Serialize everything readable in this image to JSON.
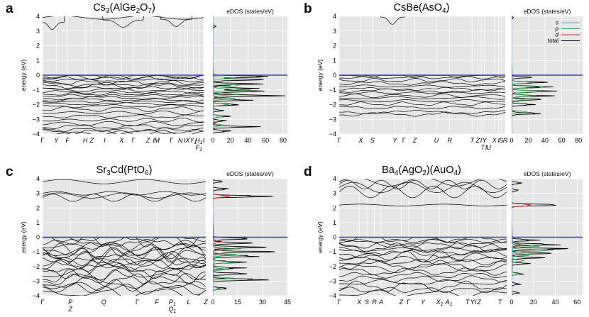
{
  "chart_data": [
    {
      "letter": "a",
      "type": "line",
      "title": "Cs3(AlGe2O7)",
      "title_parts": [
        {
          "t": "Cs"
        },
        {
          "t": "3",
          "sub": true
        },
        {
          "t": "(AlGe"
        },
        {
          "t": "2",
          "sub": true
        },
        {
          "t": "O"
        },
        {
          "t": "7",
          "sub": true
        },
        {
          "t": ")"
        }
      ],
      "ylabel": "energy (eV)",
      "ylim": [
        -4,
        4
      ],
      "yticks": [
        -4,
        -3,
        -2,
        -1,
        0,
        1,
        2,
        3,
        4
      ],
      "kpoints": [
        {
          "label": "Γ",
          "pos": 0.0
        },
        {
          "label": "Y",
          "pos": 0.085
        },
        {
          "label": "F",
          "pos": 0.155
        },
        {
          "label": "H",
          "pos": 0.265
        },
        {
          "label": "Z",
          "pos": 0.305
        },
        {
          "label": "I",
          "pos": 0.385
        },
        {
          "label": "X",
          "pos": 0.49
        },
        {
          "label": "Γ",
          "pos": 0.565
        },
        {
          "label": "Z",
          "pos": 0.655
        },
        {
          "label": "I",
          "pos": 0.69
        },
        {
          "label": "M",
          "pos": 0.71
        },
        {
          "label": "Γ",
          "pos": 0.8
        },
        {
          "label": "N",
          "pos": 0.855
        },
        {
          "label": "I",
          "pos": 0.88
        },
        {
          "label": "X",
          "pos": 0.9
        },
        {
          "label": "Y1",
          "pos": 0.935
        },
        {
          "label": "H1",
          "pos": 0.97
        },
        {
          "label": "I",
          "pos": 1.0
        }
      ],
      "kpoints_lower": [
        {
          "label": "F1",
          "pos": 0.97
        }
      ],
      "cond_bands": [
        {
          "type": "wave",
          "base": 3.92,
          "amp": 0.12,
          "freq": 2.0
        },
        {
          "type": "bump",
          "center": 0.06,
          "width": 0.03,
          "level": 3.6
        },
        {
          "type": "bump",
          "center": 0.5,
          "width": 0.05,
          "level": 3.75
        },
        {
          "type": "bump",
          "center": 0.83,
          "width": 0.04,
          "level": 3.8
        }
      ],
      "valence_bands": [
        -0.05,
        -0.12,
        -0.22,
        -0.35,
        -0.5,
        -0.62,
        -0.75,
        -0.88,
        -1.0,
        -1.15,
        -1.28,
        -1.4,
        -1.55,
        -1.68,
        -1.8,
        -1.95,
        -2.1,
        -2.3,
        -2.55,
        -2.8,
        -3.05,
        -3.3,
        -3.5,
        -3.7,
        -3.85,
        -3.95
      ],
      "band_amp": 0.1,
      "dos": {
        "xlabel": "eDOS (states/eV)",
        "xlim": [
          0,
          85
        ],
        "xticks": [
          0,
          20,
          40,
          60,
          80
        ],
        "total_peaks": [
          {
            "e": -0.1,
            "v": 72
          },
          {
            "e": -0.3,
            "v": 55
          },
          {
            "e": -0.6,
            "v": 48
          },
          {
            "e": -0.9,
            "v": 40
          },
          {
            "e": -1.1,
            "v": 58
          },
          {
            "e": -1.4,
            "v": 62
          },
          {
            "e": -1.7,
            "v": 36
          },
          {
            "e": -2.0,
            "v": 25
          },
          {
            "e": -2.4,
            "v": 12
          },
          {
            "e": -2.8,
            "v": 18
          },
          {
            "e": -3.1,
            "v": 15
          },
          {
            "e": -3.5,
            "v": 42
          },
          {
            "e": -3.8,
            "v": 20
          }
        ],
        "p_peaks": [
          {
            "e": -0.2,
            "v": 20
          },
          {
            "e": -0.7,
            "v": 30
          },
          {
            "e": -1.0,
            "v": 38
          },
          {
            "e": -1.3,
            "v": 32
          },
          {
            "e": -1.6,
            "v": 22
          },
          {
            "e": -2.0,
            "v": 14
          },
          {
            "e": -2.8,
            "v": 10
          },
          {
            "e": -3.4,
            "v": 12
          }
        ],
        "d_peaks": [
          {
            "e": -1.5,
            "v": 4
          },
          {
            "e": -3.2,
            "v": 3
          }
        ],
        "cond_peaks": [
          {
            "e": 3.3,
            "v": 3
          }
        ]
      }
    },
    {
      "letter": "b",
      "type": "line",
      "title": "CsBe(AsO4)",
      "title_parts": [
        {
          "t": "CsBe(AsO"
        },
        {
          "t": "4",
          "sub": true
        },
        {
          "t": ")"
        }
      ],
      "ylabel": "energy (eV)",
      "ylim": [
        -4,
        4
      ],
      "yticks": [
        -4,
        -3,
        -2,
        -1,
        0,
        1,
        2,
        3,
        4
      ],
      "kpoints": [
        {
          "label": "Γ",
          "pos": 0.0
        },
        {
          "label": "X",
          "pos": 0.13
        },
        {
          "label": "S",
          "pos": 0.2
        },
        {
          "label": "Y",
          "pos": 0.335
        },
        {
          "label": "Γ",
          "pos": 0.39
        },
        {
          "label": "Z",
          "pos": 0.455
        },
        {
          "label": "U",
          "pos": 0.585
        },
        {
          "label": "R",
          "pos": 0.665
        },
        {
          "label": "T",
          "pos": 0.8
        },
        {
          "label": "Z",
          "pos": 0.835
        },
        {
          "label": "I",
          "pos": 0.855
        },
        {
          "label": "Y",
          "pos": 0.875
        },
        {
          "label": "X",
          "pos": 0.935
        },
        {
          "label": "I",
          "pos": 0.96
        },
        {
          "label": "S",
          "pos": 0.975
        },
        {
          "label": "R",
          "pos": 1.0
        }
      ],
      "kpoints_lower": [
        {
          "label": "T",
          "pos": 0.865
        },
        {
          "label": "I",
          "pos": 0.885
        },
        {
          "label": "U",
          "pos": 0.9
        }
      ],
      "cond_bands": [
        {
          "type": "bump",
          "center": 0.32,
          "width": 0.03,
          "level": 3.95
        }
      ],
      "valence_bands": [
        -0.05,
        -0.15,
        -0.35,
        -0.55,
        -0.75,
        -0.95,
        -1.05,
        -1.2,
        -1.4,
        -1.55,
        -1.75,
        -1.95,
        -2.2,
        -2.5,
        -2.65
      ],
      "band_amp": 0.08,
      "dos": {
        "xlabel": "eDOS (states/eV)",
        "xlim": [
          0,
          85
        ],
        "xticks": [
          0,
          20,
          40,
          60,
          80
        ],
        "total_peaks": [
          {
            "e": -0.15,
            "v": 20
          },
          {
            "e": -0.5,
            "v": 38
          },
          {
            "e": -0.8,
            "v": 45
          },
          {
            "e": -1.1,
            "v": 50
          },
          {
            "e": -1.4,
            "v": 40
          },
          {
            "e": -1.65,
            "v": 38
          },
          {
            "e": -2.0,
            "v": 22
          },
          {
            "e": -2.6,
            "v": 30
          }
        ],
        "p_peaks": [
          {
            "e": -0.5,
            "v": 24
          },
          {
            "e": -0.8,
            "v": 30
          },
          {
            "e": -1.1,
            "v": 34
          },
          {
            "e": -1.4,
            "v": 28
          },
          {
            "e": -1.7,
            "v": 20
          },
          {
            "e": -2.5,
            "v": 16
          }
        ],
        "d_peaks": [
          {
            "e": -1.2,
            "v": 3
          }
        ],
        "cond_peaks": [
          {
            "e": 3.9,
            "v": 2
          }
        ]
      },
      "legend": [
        {
          "label": "s",
          "color": "#5aa3d6"
        },
        {
          "label": "p",
          "color": "#2fa84f"
        },
        {
          "label": "d",
          "color": "#d62728"
        },
        {
          "label": "total",
          "color": "#000000"
        }
      ]
    },
    {
      "letter": "c",
      "type": "line",
      "title": "Sr3Cd(PtO6)",
      "title_parts": [
        {
          "t": "Sr"
        },
        {
          "t": "3",
          "sub": true
        },
        {
          "t": "Cd(PtO"
        },
        {
          "t": "6",
          "sub": true
        },
        {
          "t": ")"
        }
      ],
      "ylabel": "energy (eV)",
      "ylim": [
        -4,
        4
      ],
      "yticks": [
        -4,
        -3,
        -2,
        -1,
        0,
        1,
        2,
        3,
        4
      ],
      "kpoints": [
        {
          "label": "Γ",
          "pos": 0.0
        },
        {
          "label": "P",
          "pos": 0.17
        },
        {
          "label": "Q",
          "pos": 0.375
        },
        {
          "label": "Γ",
          "pos": 0.58
        },
        {
          "label": "F",
          "pos": 0.7
        },
        {
          "label": "P1",
          "pos": 0.795
        },
        {
          "label": "L",
          "pos": 0.895
        },
        {
          "label": "Z",
          "pos": 1.0
        }
      ],
      "kpoints_lower": [
        {
          "label": "Z",
          "pos": 0.17
        },
        {
          "label": "Q1",
          "pos": 0.795
        }
      ],
      "cond_bands": [
        {
          "type": "wave",
          "base": 3.0,
          "amp": 0.12,
          "freq": 3.0
        },
        {
          "type": "wave",
          "base": 2.85,
          "amp": 0.18,
          "freq": 2.5
        },
        {
          "type": "wave",
          "base": 2.7,
          "amp": 0.25,
          "freq": 4.0
        },
        {
          "type": "wave",
          "base": 3.8,
          "amp": 0.15,
          "freq": 2.0
        }
      ],
      "valence_bands": [
        -0.05,
        -0.2,
        -0.4,
        -0.6,
        -0.75,
        -0.9,
        -1.05,
        -1.2,
        -1.35,
        -1.5,
        -1.65,
        -1.8,
        -1.95,
        -2.1,
        -2.3,
        -2.5,
        -2.7,
        -2.9,
        -3.1,
        -3.3,
        -3.55,
        -3.8
      ],
      "band_amp": 0.28,
      "dos": {
        "xlabel": "eDOS (states/eV)",
        "xlim": [
          0,
          45
        ],
        "xticks": [
          0,
          15,
          30,
          45
        ],
        "total_peaks": [
          {
            "e": -0.1,
            "v": 20
          },
          {
            "e": -0.4,
            "v": 28
          },
          {
            "e": -0.7,
            "v": 33
          },
          {
            "e": -1.0,
            "v": 30
          },
          {
            "e": -1.3,
            "v": 27
          },
          {
            "e": -1.7,
            "v": 20
          },
          {
            "e": -2.1,
            "v": 16
          },
          {
            "e": -2.5,
            "v": 22
          },
          {
            "e": -2.9,
            "v": 30
          },
          {
            "e": -3.5,
            "v": 8
          }
        ],
        "p_peaks": [
          {
            "e": -0.8,
            "v": 14
          },
          {
            "e": -1.2,
            "v": 15
          },
          {
            "e": -1.7,
            "v": 12
          },
          {
            "e": -2.2,
            "v": 8
          },
          {
            "e": -2.8,
            "v": 10
          },
          {
            "e": -3.5,
            "v": 4
          }
        ],
        "d_peaks": [
          {
            "e": -0.3,
            "v": 6
          },
          {
            "e": -0.8,
            "v": 5
          },
          {
            "e": 2.8,
            "v": 9
          }
        ],
        "cond_peaks": [
          {
            "e": 2.8,
            "v": 36
          },
          {
            "e": 3.3,
            "v": 10
          },
          {
            "e": 3.8,
            "v": 6
          }
        ]
      }
    },
    {
      "letter": "d",
      "type": "line",
      "title": "Ba4(AgO2)(AuO4)",
      "title_parts": [
        {
          "t": "Ba"
        },
        {
          "t": "4",
          "sub": true
        },
        {
          "t": "(AgO"
        },
        {
          "t": "2",
          "sub": true
        },
        {
          "t": ")(AuO"
        },
        {
          "t": "4",
          "sub": true
        },
        {
          "t": ")"
        }
      ],
      "ylabel": "energy (eV)",
      "ylim": [
        -4,
        4
      ],
      "yticks": [
        -4,
        -3,
        -2,
        -1,
        0,
        1,
        2,
        3,
        4
      ],
      "kpoints": [
        {
          "label": "Γ",
          "pos": 0.0
        },
        {
          "label": "X",
          "pos": 0.12
        },
        {
          "label": "S",
          "pos": 0.165
        },
        {
          "label": "R",
          "pos": 0.21
        },
        {
          "label": "A",
          "pos": 0.25
        },
        {
          "label": "Z",
          "pos": 0.37
        },
        {
          "label": "Γ",
          "pos": 0.415
        },
        {
          "label": "Y",
          "pos": 0.5
        },
        {
          "label": "X1",
          "pos": 0.6
        },
        {
          "label": "A1",
          "pos": 0.655
        },
        {
          "label": "T",
          "pos": 0.765
        },
        {
          "label": "Y",
          "pos": 0.795
        },
        {
          "label": "I",
          "pos": 0.815
        },
        {
          "label": "Z",
          "pos": 0.835
        },
        {
          "label": "T",
          "pos": 0.96
        }
      ],
      "kpoints_lower": [],
      "cond_bands": [
        {
          "type": "wave",
          "base": 2.2,
          "amp": 0.06,
          "freq": 2.0
        },
        {
          "type": "wave",
          "base": 3.4,
          "amp": 0.35,
          "freq": 3.0
        },
        {
          "type": "wave",
          "base": 3.8,
          "amp": 0.3,
          "freq": 2.5
        },
        {
          "type": "wave",
          "base": 3.1,
          "amp": 0.4,
          "freq": 4.0
        },
        {
          "type": "wave",
          "base": 3.6,
          "amp": 0.3,
          "freq": 5.0
        }
      ],
      "valence_bands": [
        -0.1,
        -0.25,
        -0.4,
        -0.55,
        -0.7,
        -0.85,
        -1.0,
        -1.15,
        -1.3,
        -1.5,
        -1.7,
        -1.9,
        -2.1,
        -2.35,
        -2.6,
        -2.85,
        -3.1,
        -3.35,
        -3.6,
        -3.85
      ],
      "band_amp": 0.2,
      "dos": {
        "xlabel": "eDOS (states/eV)",
        "xlim": [
          0,
          65
        ],
        "xticks": [
          0,
          20,
          40,
          60
        ],
        "total_peaks": [
          {
            "e": -0.2,
            "v": 20
          },
          {
            "e": -0.5,
            "v": 40
          },
          {
            "e": -0.8,
            "v": 52
          },
          {
            "e": -1.1,
            "v": 38
          },
          {
            "e": -1.4,
            "v": 28
          },
          {
            "e": -1.8,
            "v": 14
          },
          {
            "e": -2.5,
            "v": 10
          },
          {
            "e": -3.2,
            "v": 8
          },
          {
            "e": -3.8,
            "v": 6
          }
        ],
        "p_peaks": [
          {
            "e": -0.6,
            "v": 26
          },
          {
            "e": -0.9,
            "v": 30
          },
          {
            "e": -1.2,
            "v": 18
          },
          {
            "e": -1.6,
            "v": 10
          },
          {
            "e": -2.5,
            "v": 6
          }
        ],
        "d_peaks": [
          {
            "e": -0.5,
            "v": 8
          },
          {
            "e": 2.2,
            "v": 18
          }
        ],
        "cond_peaks": [
          {
            "e": 2.2,
            "v": 50
          },
          {
            "e": 3.2,
            "v": 6
          },
          {
            "e": 3.7,
            "v": 8
          }
        ]
      }
    }
  ],
  "colors": {
    "fermi": "#3a3ad6",
    "band": "#000000",
    "panel_bg": "#e6e6e6",
    "grid": "#ffffff",
    "total": "#000000",
    "s": "#5aa3d6",
    "p": "#2fa84f",
    "d": "#d62728"
  }
}
